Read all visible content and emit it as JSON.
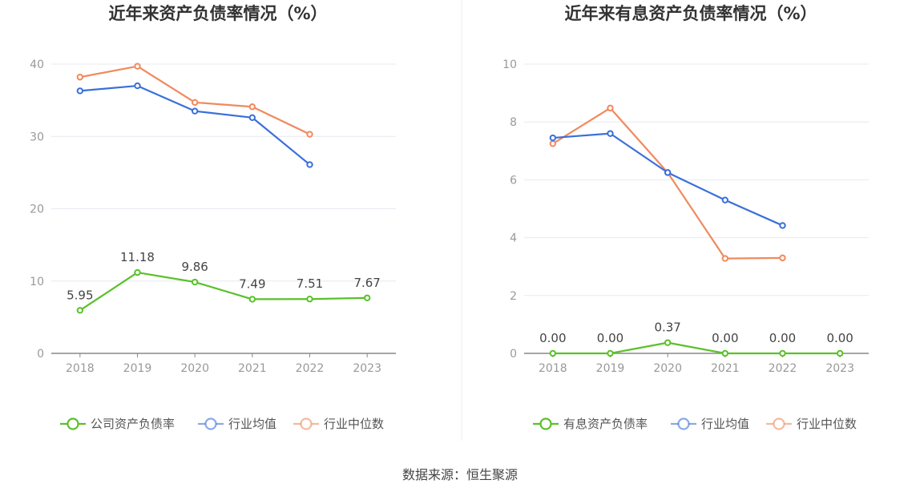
{
  "source": "数据来源：恒生聚源",
  "colors": {
    "company": "#5ac12a",
    "industry_avg": "#3a6fdb",
    "industry_median": "#f08a5d",
    "grid": "#e6e9f0",
    "axis": "#888888"
  },
  "chart_data": [
    {
      "type": "line",
      "title": "近年来资产负债率情况（%）",
      "categories": [
        "2018",
        "2019",
        "2020",
        "2021",
        "2022",
        "2023"
      ],
      "ylim": [
        0,
        40
      ],
      "yticks": [
        0,
        10,
        20,
        30,
        40
      ],
      "grid": true,
      "legend_position": "bottom",
      "series": [
        {
          "name": "公司资产负债率",
          "key": "company",
          "values": [
            5.95,
            11.18,
            9.86,
            7.49,
            7.51,
            7.67
          ],
          "labels": [
            "5.95",
            "11.18",
            "9.86",
            "7.49",
            "7.51",
            "7.67"
          ]
        },
        {
          "name": "行业均值",
          "key": "industry_avg",
          "values": [
            36.3,
            37.0,
            33.5,
            32.6,
            26.1,
            null
          ]
        },
        {
          "name": "行业中位数",
          "key": "industry_median",
          "values": [
            38.2,
            39.7,
            34.7,
            34.1,
            30.3,
            null
          ]
        }
      ]
    },
    {
      "type": "line",
      "title": "近年来有息资产负债率情况（%）",
      "categories": [
        "2018",
        "2019",
        "2020",
        "2021",
        "2022",
        "2023"
      ],
      "ylim": [
        0,
        10
      ],
      "yticks": [
        0,
        2,
        4,
        6,
        8,
        10
      ],
      "grid": true,
      "legend_position": "bottom",
      "series": [
        {
          "name": "有息资产负债率",
          "key": "company",
          "values": [
            0.0,
            0.0,
            0.37,
            0.0,
            0.0,
            0.0
          ],
          "labels": [
            "0.00",
            "0.00",
            "0.37",
            "0.00",
            "0.00",
            "0.00"
          ]
        },
        {
          "name": "行业均值",
          "key": "industry_avg",
          "values": [
            7.45,
            7.6,
            6.25,
            5.3,
            4.42,
            null
          ]
        },
        {
          "name": "行业中位数",
          "key": "industry_median",
          "values": [
            7.25,
            8.48,
            6.25,
            3.28,
            3.3,
            null
          ]
        }
      ]
    }
  ]
}
